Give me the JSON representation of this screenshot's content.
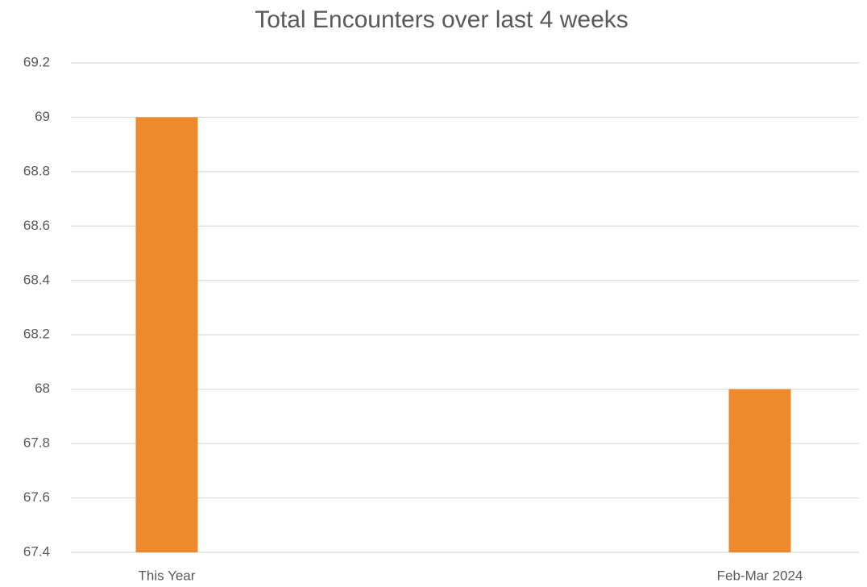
{
  "chart_data": {
    "type": "bar",
    "title": "Total Encounters over last 4 weeks",
    "categories": [
      "This Year",
      "Feb-Mar 2024"
    ],
    "values": [
      69,
      68
    ],
    "color": "#ee8a2b",
    "ylim": [
      67.4,
      69.2
    ],
    "yticks": [
      67.4,
      67.6,
      67.8,
      68,
      68.2,
      68.4,
      68.6,
      68.8,
      69,
      69.2
    ],
    "grid": true
  }
}
